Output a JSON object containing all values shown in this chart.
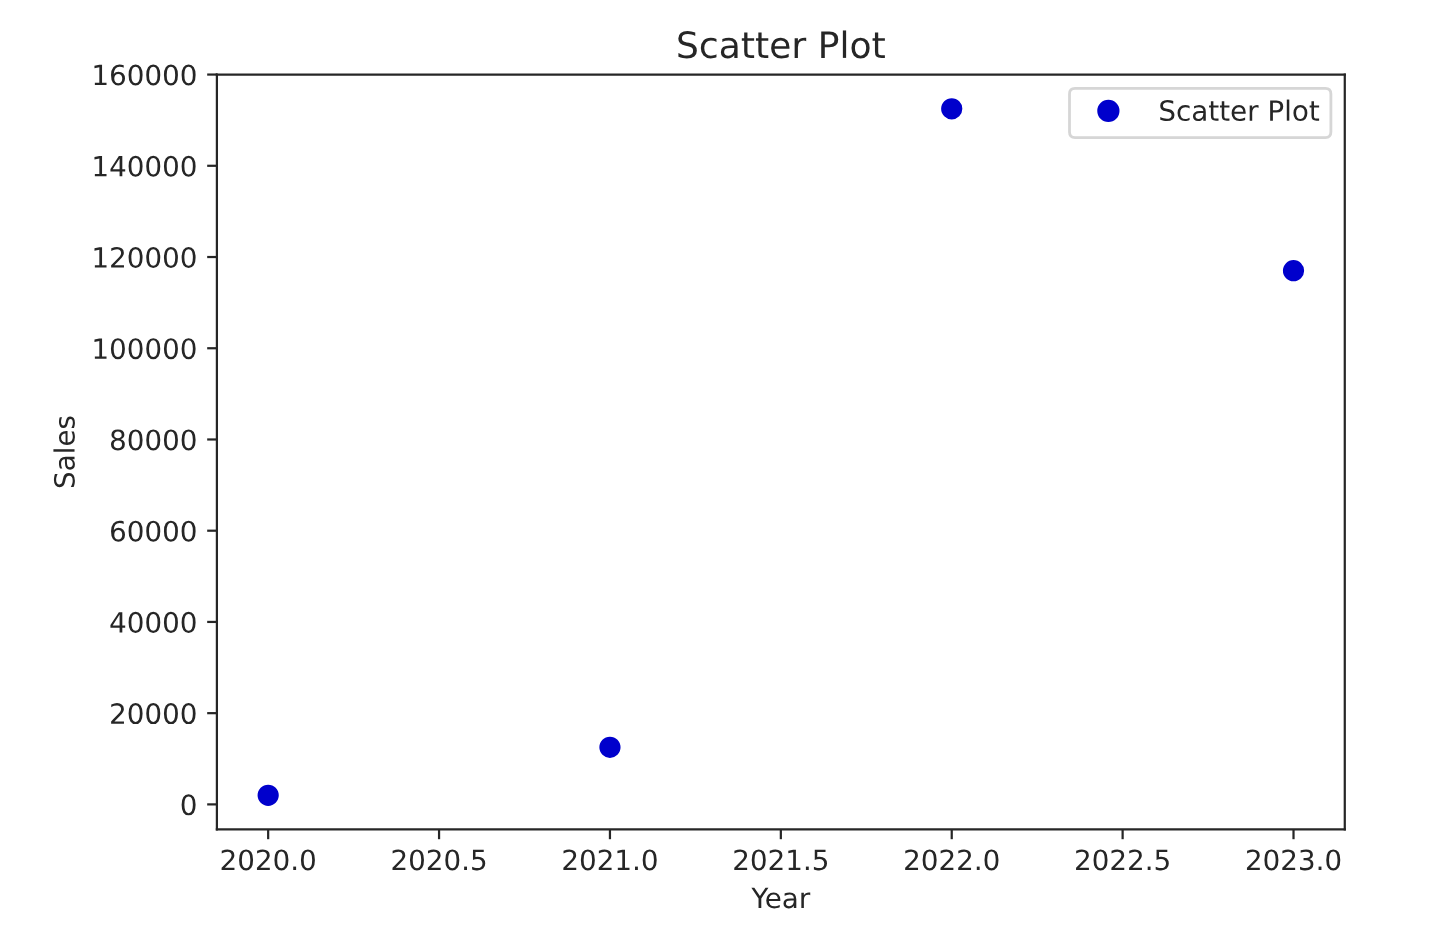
{
  "chart_data": {
    "type": "scatter",
    "title": "Scatter Plot",
    "xlabel": "Year",
    "ylabel": "Sales",
    "x": [
      2020,
      2021,
      2022,
      2023
    ],
    "series": [
      {
        "name": "Scatter Plot",
        "color": "#0000cc",
        "values": [
          2000,
          12500,
          152500,
          117000
        ]
      }
    ],
    "xlim": [
      2019.85,
      2023.15
    ],
    "xticks": [
      {
        "value": 2020,
        "label": "2020.0"
      },
      {
        "value": 2020.5,
        "label": "2020.5"
      },
      {
        "value": 2021,
        "label": "2021.0"
      },
      {
        "value": 2021.5,
        "label": "2021.5"
      },
      {
        "value": 2022,
        "label": "2022.0"
      },
      {
        "value": 2022.5,
        "label": "2022.5"
      },
      {
        "value": 2023,
        "label": "2023.0"
      }
    ],
    "ylim": [
      -5500,
      160000
    ],
    "yticks": [
      0,
      20000,
      40000,
      60000,
      80000,
      100000,
      120000,
      140000,
      160000
    ],
    "marker": "circle",
    "legend": "top right",
    "grid": false
  }
}
